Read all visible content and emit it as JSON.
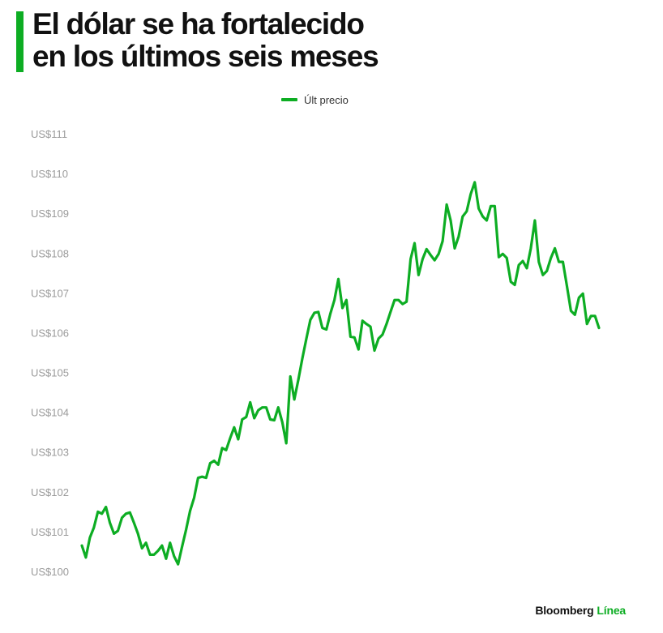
{
  "title_lines": [
    "El dólar se ha fortalecido",
    "en los últimos seis meses"
  ],
  "brand": {
    "name": "Bloomberg",
    "accent": "Línea"
  },
  "colors": {
    "accent": "#0dad23",
    "text": "#111111",
    "tick": "#9a9a9a"
  },
  "chart_data": {
    "type": "line",
    "title": "El dólar se ha fortalecido en los últimos seis meses",
    "xlabel": "",
    "ylabel": "",
    "ylim": [
      100,
      111
    ],
    "ytick_values": [
      100,
      101,
      102,
      103,
      104,
      105,
      106,
      107,
      108,
      109,
      110,
      111
    ],
    "ytick_labels": [
      "US$100",
      "US$101",
      "US$102",
      "US$103",
      "US$104",
      "US$105",
      "US$106",
      "US$107",
      "US$108",
      "US$109",
      "US$110",
      "US$111"
    ],
    "grid": false,
    "legend_position": "top-center",
    "series": [
      {
        "name": "Últ precio",
        "color": "#0dad23",
        "values": [
          100.65,
          100.35,
          100.85,
          101.1,
          101.5,
          101.45,
          101.62,
          101.22,
          100.95,
          101.02,
          101.35,
          101.45,
          101.48,
          101.22,
          100.95,
          100.58,
          100.72,
          100.42,
          100.42,
          100.52,
          100.65,
          100.32,
          100.72,
          100.38,
          100.18,
          100.62,
          101.05,
          101.52,
          101.85,
          102.35,
          102.38,
          102.35,
          102.72,
          102.78,
          102.68,
          103.1,
          103.05,
          103.35,
          103.62,
          103.32,
          103.82,
          103.88,
          104.25,
          103.85,
          104.05,
          104.12,
          104.12,
          103.82,
          103.8,
          104.12,
          103.75,
          103.22,
          104.9,
          104.32,
          104.82,
          105.35,
          105.85,
          106.32,
          106.5,
          106.52,
          106.12,
          106.08,
          106.48,
          106.82,
          107.35,
          106.62,
          106.82,
          105.9,
          105.88,
          105.58,
          106.3,
          106.22,
          106.15,
          105.55,
          105.85,
          105.95,
          106.22,
          106.52,
          106.82,
          106.82,
          106.72,
          106.78,
          107.85,
          108.25,
          107.45,
          107.85,
          108.1,
          107.95,
          107.82,
          107.98,
          108.3,
          109.22,
          108.82,
          108.12,
          108.42,
          108.92,
          109.05,
          109.48,
          109.78,
          109.12,
          108.92,
          108.82,
          109.18,
          109.18,
          107.9,
          107.98,
          107.88,
          107.28,
          107.2,
          107.7,
          107.8,
          107.62,
          108.12,
          108.82,
          107.78,
          107.45,
          107.55,
          107.88,
          108.12,
          107.78,
          107.78,
          107.18,
          106.55,
          106.45,
          106.88,
          106.98,
          106.22,
          106.42,
          106.42,
          106.12
        ]
      }
    ]
  }
}
